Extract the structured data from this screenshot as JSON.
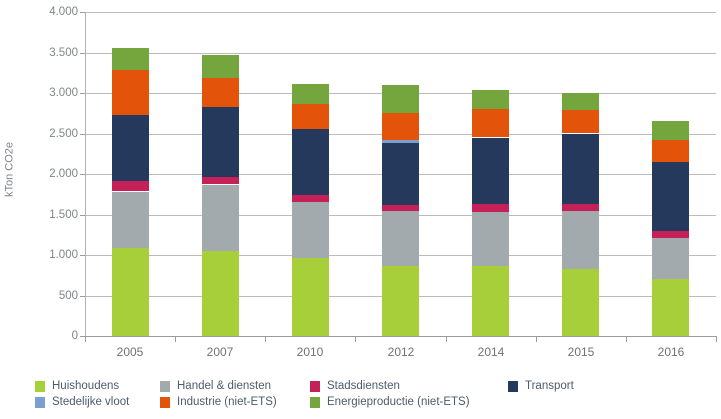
{
  "chart_data": {
    "type": "bar",
    "subtype": "stacked-vertical",
    "title": "",
    "ylabel": "kTon CO2e",
    "xlabel": "",
    "ylim": [
      0,
      4000
    ],
    "ytick_step": 500,
    "ytick_labels": [
      "0",
      "500",
      "1.000",
      "1.500",
      "2.000",
      "2.500",
      "3.000",
      "3.500",
      "4.000"
    ],
    "grid": true,
    "legend_position": "bottom",
    "categories": [
      "2005",
      "2007",
      "2010",
      "2012",
      "2014",
      "2015",
      "2016"
    ],
    "series": [
      {
        "name": "Huishoudens",
        "color": "#a7cf3a",
        "values": [
          1090,
          1050,
          960,
          860,
          860,
          830,
          700
        ]
      },
      {
        "name": "Handel & diensten",
        "color": "#a2aaad",
        "values": [
          690,
          820,
          690,
          680,
          670,
          710,
          510
        ]
      },
      {
        "name": "Stadsdiensten",
        "color": "#c62059",
        "values": [
          140,
          100,
          90,
          80,
          100,
          90,
          90
        ]
      },
      {
        "name": "Transport",
        "color": "#24395b",
        "values": [
          810,
          860,
          810,
          760,
          820,
          870,
          850
        ]
      },
      {
        "name": "Stedelijke vloot",
        "color": "#7ba0d0",
        "values": [
          0,
          0,
          0,
          35,
          0,
          0,
          0
        ]
      },
      {
        "name": "Industrie (niet-ETS)",
        "color": "#e4530a",
        "values": [
          550,
          360,
          310,
          345,
          360,
          290,
          270
        ]
      },
      {
        "name": "Energieproductie (niet-ETS)",
        "color": "#75a53d",
        "values": [
          270,
          280,
          250,
          340,
          230,
          210,
          230
        ]
      }
    ],
    "totals": [
      3550,
      3470,
      3110,
      3100,
      3040,
      3000,
      2650
    ]
  },
  "colors": {
    "gridline": "#bcbcbc",
    "axis": "#9b9b9b",
    "tick_label": "#80848a",
    "category_label": "#6f7276",
    "legend_label": "#4b5c6b",
    "background": "#ffffff"
  }
}
